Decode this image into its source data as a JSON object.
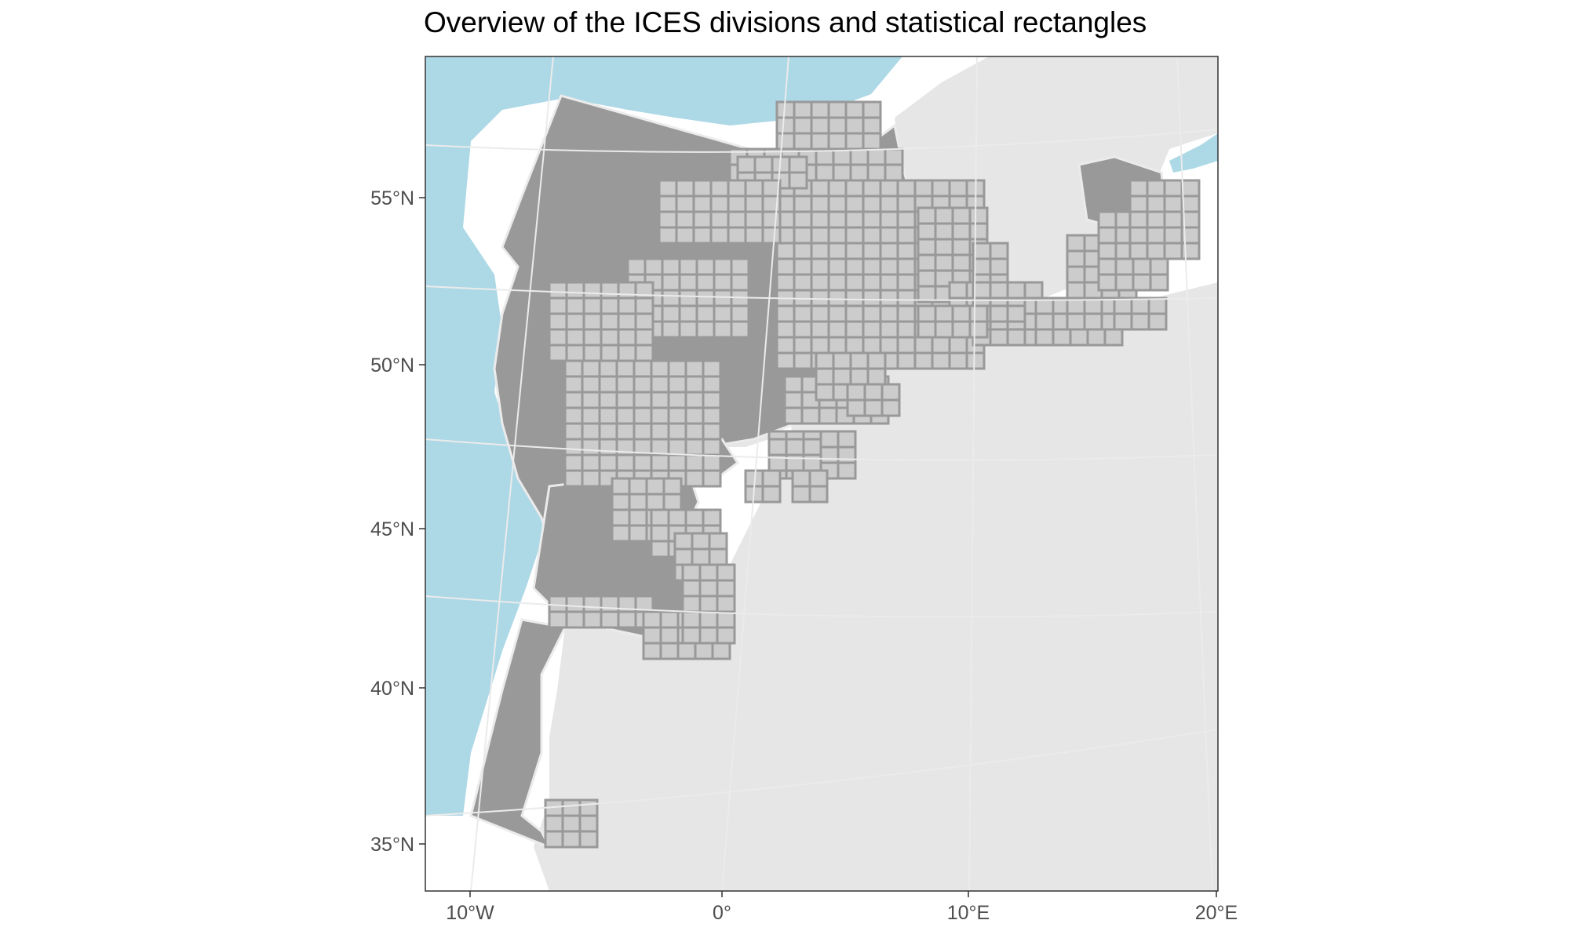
{
  "title": "Overview of the ICES divisions and statistical rectangles",
  "axes": {
    "latitude_ticks": [
      "55°N",
      "50°N",
      "45°N",
      "40°N",
      "35°N"
    ],
    "longitude_ticks": [
      "10°W",
      "0°",
      "10°E",
      "20°E"
    ]
  },
  "colors": {
    "sea": "#add8e6",
    "land": "#e6e6e6",
    "division_fill": "#999999",
    "rectangle_fill": "#cccccc",
    "rectangle_stroke": "#999999",
    "graticule": "#ebebeb",
    "boundary": "#ebebeb"
  }
}
